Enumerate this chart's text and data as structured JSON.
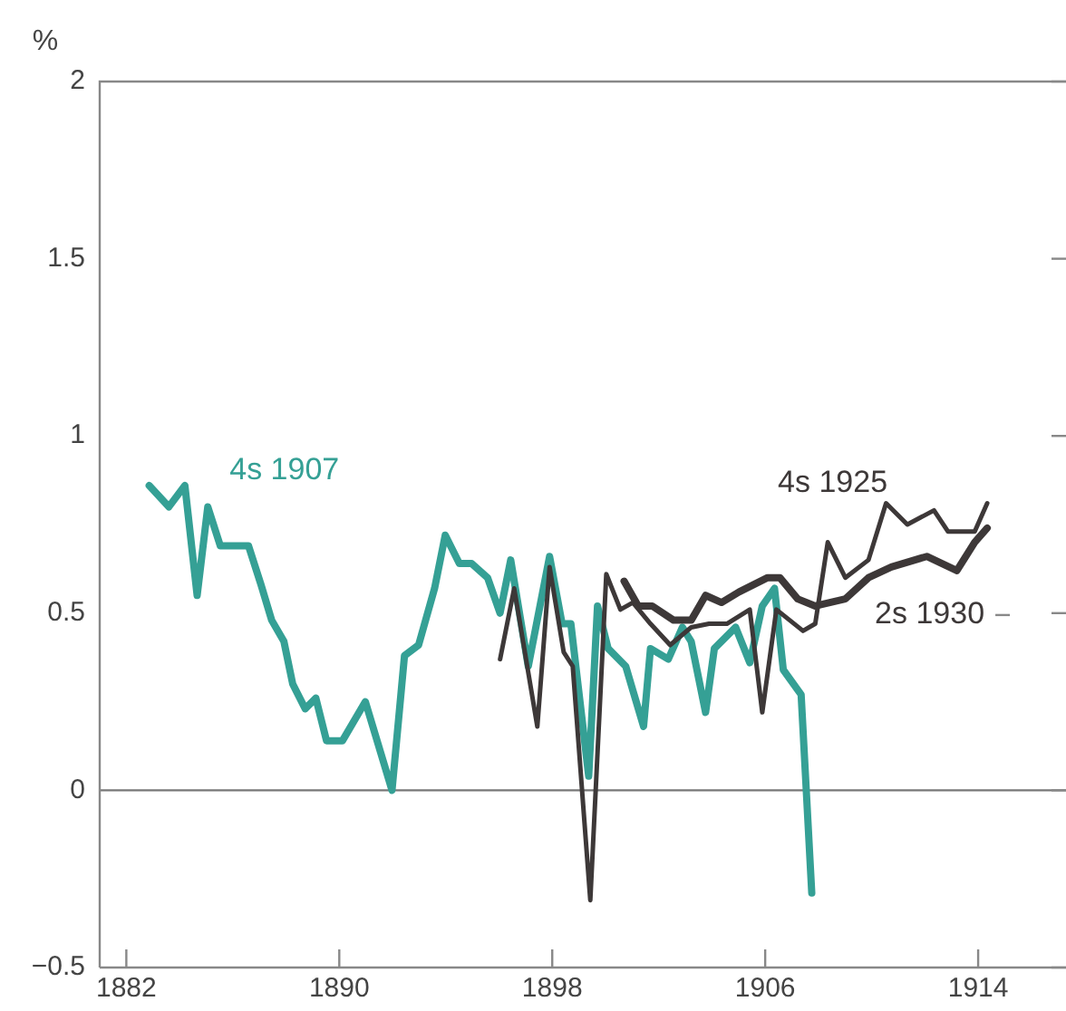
{
  "chart_data": {
    "type": "line",
    "ylabel": "%",
    "xlim": [
      1881,
      1917.3
    ],
    "xticks": [
      1882,
      1890,
      1898,
      1906,
      1914
    ],
    "ylim": [
      -0.5,
      2
    ],
    "yticks": [
      {
        "value": -0.5,
        "label": "−0.5"
      },
      0,
      0.5,
      1,
      1.5,
      2
    ],
    "grid": false,
    "legend": false,
    "marker": "none",
    "line_style": "solid",
    "ref_lines": [
      {
        "axis": "y",
        "value": 0,
        "label": null,
        "color": "#777777"
      }
    ],
    "series": [
      {
        "name": "4s 1907",
        "color": "#35a095",
        "x": [
          1882.86,
          1883.6,
          1884.2,
          1884.66,
          1885.06,
          1885.53,
          1886.59,
          1887.06,
          1887.46,
          1887.92,
          1888.25,
          1888.72,
          1889.12,
          1889.52,
          1890.12,
          1890.98,
          1891.98,
          1892.45,
          1892.98,
          1893.58,
          1893.98,
          1894.51,
          1894.97,
          1895.57,
          1896.04,
          1896.44,
          1897.1,
          1897.9,
          1898.37,
          1898.7,
          1899.37,
          1899.7,
          1900.1,
          1900.76,
          1901.43,
          1901.69,
          1902.36,
          1902.89,
          1903.22,
          1903.76,
          1904.09,
          1904.89,
          1905.42,
          1905.89,
          1906.35,
          1906.68,
          1907.35,
          1907.75
        ],
        "values": [
          0.86,
          0.8,
          0.86,
          0.55,
          0.8,
          0.69,
          0.69,
          0.58,
          0.48,
          0.42,
          0.3,
          0.23,
          0.26,
          0.14,
          0.14,
          0.25,
          0.0,
          0.38,
          0.41,
          0.57,
          0.72,
          0.64,
          0.64,
          0.6,
          0.5,
          0.65,
          0.35,
          0.66,
          0.47,
          0.47,
          0.04,
          0.52,
          0.4,
          0.35,
          0.18,
          0.4,
          0.37,
          0.46,
          0.42,
          0.22,
          0.4,
          0.46,
          0.36,
          0.52,
          0.57,
          0.34,
          0.27,
          -0.29
        ]
      },
      {
        "name": "4s 1925",
        "color": "#3d3838",
        "x": [
          1896.04,
          1896.57,
          1897.44,
          1897.9,
          1898.43,
          1898.77,
          1899.43,
          1900.03,
          1900.56,
          1901.03,
          1901.69,
          1902.43,
          1903.22,
          1903.89,
          1904.56,
          1905.42,
          1905.89,
          1906.42,
          1907.42,
          1907.88,
          1908.35,
          1909.01,
          1909.88,
          1910.54,
          1911.34,
          1912.34,
          1912.87,
          1913.87,
          1914.34
        ],
        "values": [
          0.37,
          0.57,
          0.18,
          0.63,
          0.39,
          0.35,
          -0.31,
          0.61,
          0.51,
          0.53,
          0.47,
          0.41,
          0.46,
          0.47,
          0.47,
          0.51,
          0.22,
          0.51,
          0.45,
          0.47,
          0.7,
          0.6,
          0.65,
          0.81,
          0.75,
          0.79,
          0.73,
          0.73,
          0.81
        ]
      },
      {
        "name": "2s 1930",
        "color": "#3d3838",
        "x": [
          1900.7,
          1901.23,
          1901.76,
          1902.56,
          1903.22,
          1903.76,
          1904.36,
          1905.02,
          1906.09,
          1906.55,
          1907.22,
          1907.88,
          1909.01,
          1909.88,
          1910.74,
          1912.07,
          1913.2,
          1913.87,
          1914.34
        ],
        "values": [
          0.59,
          0.52,
          0.52,
          0.48,
          0.48,
          0.55,
          0.53,
          0.56,
          0.6,
          0.6,
          0.54,
          0.52,
          0.54,
          0.6,
          0.63,
          0.66,
          0.62,
          0.7,
          0.74
        ]
      }
    ]
  }
}
